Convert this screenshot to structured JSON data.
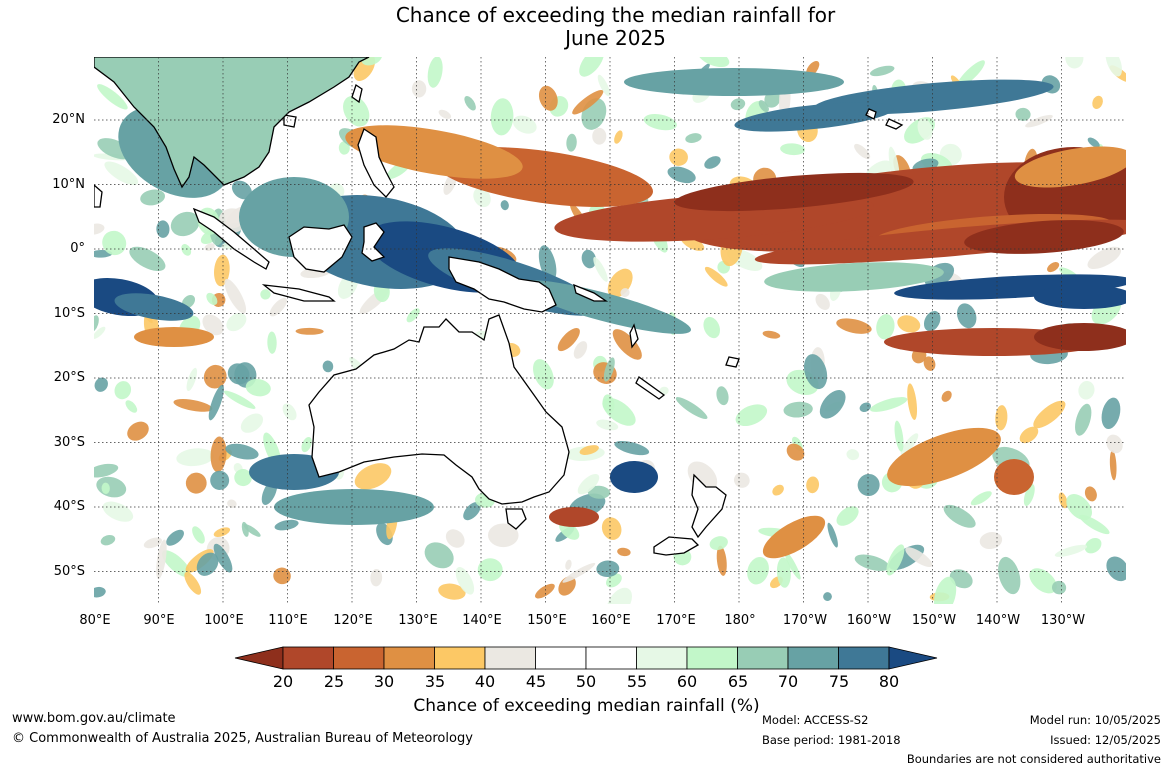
{
  "title": {
    "line1": "Chance of exceeding the median rainfall for",
    "line2": "June 2025"
  },
  "map": {
    "latitude_labels": [
      "20°N",
      "10°N",
      "0°",
      "10°S",
      "20°S",
      "30°S",
      "40°S",
      "50°S"
    ],
    "longitude_labels": [
      "80°E",
      "90°E",
      "100°E",
      "110°E",
      "120°E",
      "130°E",
      "140°E",
      "150°E",
      "160°E",
      "170°E",
      "180°",
      "170°W",
      "160°W",
      "150°W",
      "140°W",
      "130°W"
    ]
  },
  "legend": {
    "ticks": [
      "20",
      "25",
      "30",
      "35",
      "40",
      "45",
      "50",
      "55",
      "60",
      "65",
      "70",
      "75",
      "80"
    ],
    "colors": [
      "#8e2f1c",
      "#b0472a",
      "#c96430",
      "#df9043",
      "#fcc865",
      "#ebe8e2",
      "#ffffff",
      "#ffffff",
      "#e6f8e6",
      "#c2f7c9",
      "#98cdb5",
      "#67a2a4",
      "#3f7896",
      "#1a4a82"
    ],
    "title": "Chance of exceeding median rainfall (%)"
  },
  "footer": {
    "url": "www.bom.gov.au/climate",
    "copyright": "© Commonwealth of Australia 2025, Australian Bureau of Meteorology",
    "model": "Model: ACCESS-S2",
    "base_period": "Base period: 1981-2018",
    "model_run": "Model run: 10/05/2025",
    "issued": "Issued: 12/05/2025",
    "disclaimer": "Boundaries are not considered authoritative"
  }
}
